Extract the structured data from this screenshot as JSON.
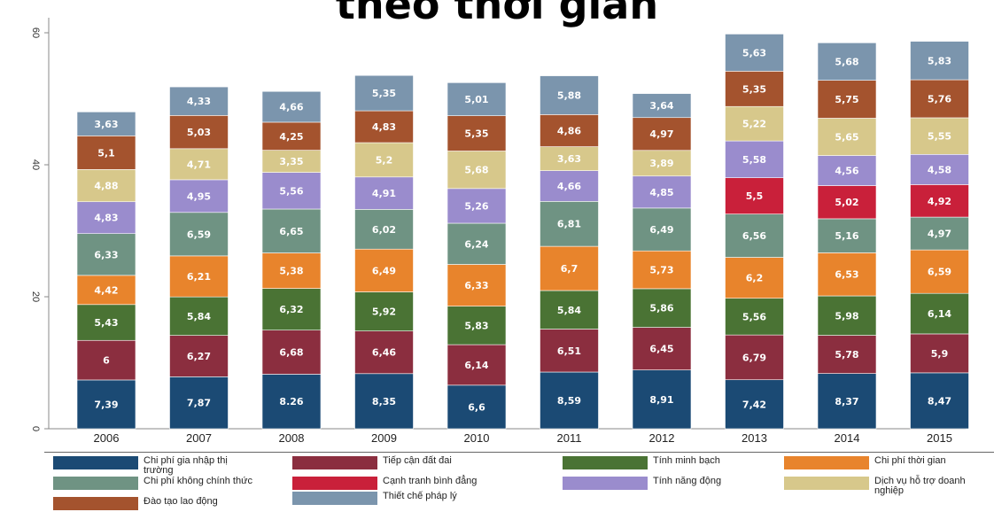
{
  "title": "theo thời gian",
  "chart_data": {
    "type": "bar",
    "stacked": true,
    "categories": [
      "2006",
      "2007",
      "2008",
      "2009",
      "2010",
      "2011",
      "2012",
      "2013",
      "2014",
      "2015"
    ],
    "ylim": [
      0,
      80
    ],
    "yticks": [
      "0",
      "20",
      "40",
      "60"
    ],
    "series": [
      {
        "name": "Chi phí gia nhập thị trường",
        "color": "#1b4a74",
        "values": [
          7.39,
          7.87,
          8.26,
          8.35,
          6.6,
          8.59,
          8.91,
          7.42,
          8.37,
          8.47
        ],
        "labels": [
          "7,39",
          "7,87",
          "8.26",
          "8,35",
          "6,6",
          "8,59",
          "8,91",
          "7,42",
          "8,37",
          "8,47"
        ]
      },
      {
        "name": "Tiếp cận đất đai",
        "color": "#8b2e3f",
        "values": [
          6,
          6.27,
          6.68,
          6.46,
          6.14,
          6.51,
          6.45,
          6.79,
          5.78,
          5.9
        ],
        "labels": [
          "6",
          "6,27",
          "6,68",
          "6,46",
          "6,14",
          "6,51",
          "6,45",
          "6,79",
          "5,78",
          "5,9"
        ]
      },
      {
        "name": "Tính minh bạch",
        "color": "#4a7334",
        "values": [
          5.43,
          5.84,
          6.32,
          5.92,
          5.83,
          5.84,
          5.86,
          5.56,
          5.98,
          6.14
        ],
        "labels": [
          "5,43",
          "5,84",
          "6,32",
          "5,92",
          "5,83",
          "5,84",
          "5,86",
          "5,56",
          "5,98",
          "6,14"
        ]
      },
      {
        "name": "Chi phí thời gian",
        "color": "#e8842c",
        "values": [
          4.42,
          6.21,
          5.38,
          6.49,
          6.33,
          6.7,
          5.73,
          6.2,
          6.53,
          6.59
        ],
        "labels": [
          "4,42",
          "6,21",
          "5,38",
          "6,49",
          "6,33",
          "6,7",
          "5,73",
          "6,2",
          "6,53",
          "6,59"
        ]
      },
      {
        "name": "Chi phí không chính thức",
        "color": "#6f9383",
        "values": [
          6.33,
          6.59,
          6.65,
          6.02,
          6.24,
          6.81,
          6.49,
          6.56,
          5.16,
          4.97
        ],
        "labels": [
          "6,33",
          "6,59",
          "6,65",
          "6,02",
          "6,24",
          "6,81",
          "6,49",
          "6,56",
          "5,16",
          "4,97"
        ]
      },
      {
        "name": "Cạnh tranh bình đẳng",
        "color": "#c9203a",
        "values": [
          0,
          0,
          0,
          0,
          0,
          0,
          0,
          5.5,
          5.02,
          4.92
        ],
        "labels": [
          "",
          "",
          "",
          "",
          "",
          "",
          "",
          "5,5",
          "5,02",
          "4,92"
        ]
      },
      {
        "name": "Tính năng động",
        "color": "#9a8ccd",
        "values": [
          4.83,
          4.95,
          5.56,
          4.91,
          5.26,
          4.66,
          4.85,
          5.58,
          4.56,
          4.58
        ],
        "labels": [
          "4,83",
          "4,95",
          "5,56",
          "4,91",
          "5,26",
          "4,66",
          "4,85",
          "5,58",
          "4,56",
          "4,58"
        ]
      },
      {
        "name": "Dịch vụ hỗ trợ doanh nghiệp",
        "color": "#d7c88b",
        "values": [
          4.88,
          4.71,
          3.35,
          5.2,
          5.68,
          3.63,
          3.89,
          5.22,
          5.65,
          5.55
        ],
        "labels": [
          "4,88",
          "4,71",
          "3,35",
          "5,2",
          "5,68",
          "3,63",
          "3,89",
          "5,22",
          "5,65",
          "5,55"
        ]
      },
      {
        "name": "Đào tạo lao động",
        "color": "#a4532e",
        "values": [
          5.1,
          5.03,
          4.25,
          4.83,
          5.35,
          4.86,
          4.97,
          5.35,
          5.75,
          5.76
        ],
        "labels": [
          "5,1",
          "5,03",
          "4,25",
          "4,83",
          "5,35",
          "4,86",
          "4,97",
          "5,35",
          "5,75",
          "5,76"
        ]
      },
      {
        "name": "Thiết chế pháp lý",
        "color": "#7b95ad",
        "values": [
          3.63,
          4.33,
          4.66,
          5.35,
          5.01,
          5.88,
          3.64,
          5.63,
          5.68,
          5.83
        ],
        "labels": [
          "3,63",
          "4,33",
          "4,66",
          "5,35",
          "5,01",
          "5,88",
          "3,64",
          "5,63",
          "5,68",
          "5,83"
        ]
      }
    ]
  },
  "legend": [
    {
      "label": "Chi phí gia nhập thị trường",
      "color": "#1b4a74"
    },
    {
      "label": "Tiếp cận đất đai",
      "color": "#8b2e3f"
    },
    {
      "label": "Tính minh bạch",
      "color": "#4a7334"
    },
    {
      "label": "Chi phí thời gian",
      "color": "#e8842c"
    },
    {
      "label": "Chi phí không chính thức",
      "color": "#6f9383"
    },
    {
      "label": "Cạnh tranh bình đẳng",
      "color": "#c9203a"
    },
    {
      "label": "Tính năng động",
      "color": "#9a8ccd"
    },
    {
      "label": "Dịch vụ hỗ trợ doanh nghiệp",
      "color": "#d7c88b"
    },
    {
      "label": "Đào tạo lao động",
      "color": "#a4532e"
    },
    {
      "label": "Thiết chế pháp lý",
      "color": "#7b95ad"
    }
  ]
}
